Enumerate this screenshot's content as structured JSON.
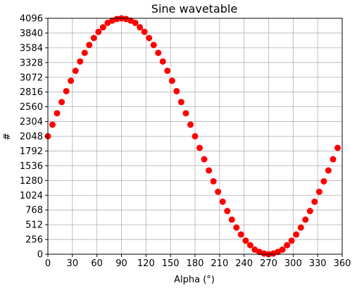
{
  "chart_data": {
    "type": "scatter",
    "title": "Sine wavetable",
    "xlabel": "Alpha (°)",
    "ylabel": "#",
    "xlim": [
      0,
      360
    ],
    "ylim": [
      0,
      4096
    ],
    "xticks": [
      0,
      30,
      60,
      90,
      120,
      150,
      180,
      210,
      240,
      270,
      300,
      330,
      360
    ],
    "yticks": [
      0,
      256,
      512,
      768,
      1024,
      1280,
      1536,
      1792,
      2048,
      2304,
      2560,
      2816,
      3072,
      3328,
      3584,
      3840,
      4096
    ],
    "grid": true,
    "marker_color": "#ff0000",
    "series": [
      {
        "x": [
          0,
          5.6,
          11.2,
          16.9,
          22.5,
          28.1,
          33.8,
          39.4,
          45,
          50.6,
          56.2,
          61.9,
          67.5,
          73.1,
          78.8,
          84.4,
          90,
          95.6,
          101.2,
          106.9,
          112.5,
          118.1,
          123.8,
          129.4,
          135,
          140.6,
          146.2,
          151.9,
          157.5,
          163.1,
          168.8,
          174.4,
          180,
          185.6,
          191.2,
          196.9,
          202.5,
          208.1,
          213.8,
          219.4,
          225,
          230.6,
          236.2,
          241.9,
          247.5,
          253.1,
          258.8,
          264.4,
          270,
          275.6,
          281.2,
          286.9,
          292.5,
          298.1,
          303.8,
          309.4,
          315,
          320.6,
          326.2,
          331.9,
          337.5,
          343.1,
          348.8,
          354.4
        ],
        "y": [
          2048,
          2249,
          2447,
          2642,
          2831,
          3012,
          3185,
          3346,
          3496,
          3633,
          3754,
          3861,
          3940,
          4017,
          4057,
          4084,
          4096,
          4084,
          4057,
          4017,
          3940,
          3861,
          3754,
          3633,
          3496,
          3346,
          3185,
          3012,
          2831,
          2642,
          2447,
          2249,
          2048,
          1847,
          1649,
          1454,
          1265,
          1084,
          911,
          750,
          600,
          463,
          342,
          235,
          156,
          79,
          39,
          12,
          0,
          12,
          39,
          79,
          156,
          235,
          342,
          463,
          600,
          750,
          911,
          1084,
          1265,
          1454,
          1649,
          1847
        ]
      }
    ]
  }
}
